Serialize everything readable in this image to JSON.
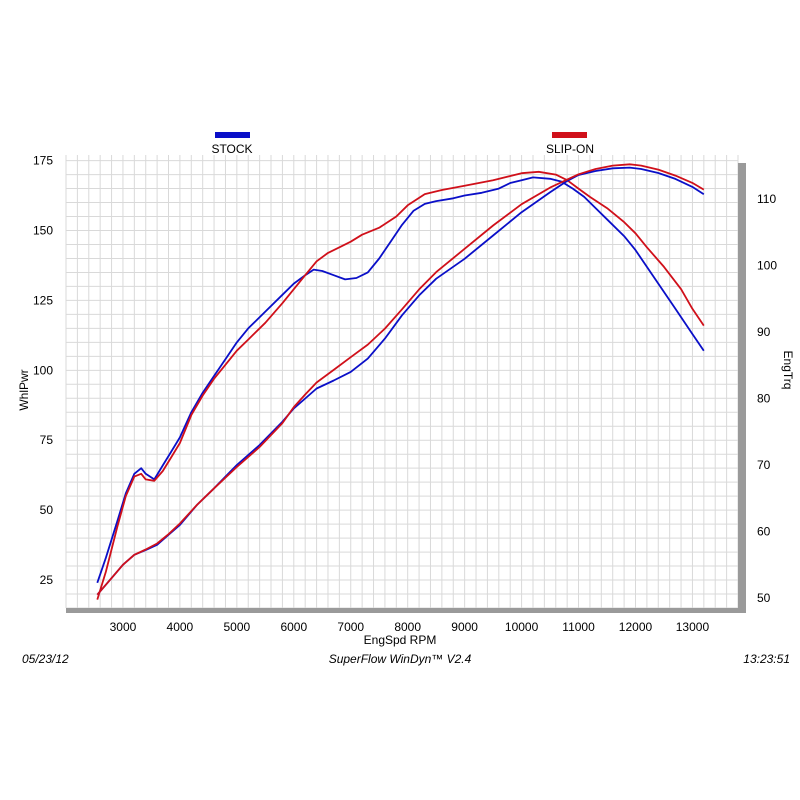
{
  "chart_data": {
    "type": "line",
    "xlabel": "EngSpd  RPM",
    "ylabel_left": "WhlPwr",
    "ylabel_right": "EngTrq",
    "xlim": [
      2000,
      13800
    ],
    "ylim_left": [
      15,
      177
    ],
    "ylim_right": [
      48.5,
      116.6
    ],
    "x_ticks": [
      3000,
      4000,
      5000,
      6000,
      7000,
      8000,
      9000,
      10000,
      11000,
      12000,
      13000
    ],
    "y_ticks_left": [
      25,
      50,
      75,
      100,
      125,
      150,
      175
    ],
    "y_ticks_right": [
      50,
      60,
      70,
      80,
      90,
      100,
      110
    ],
    "grid": true,
    "legend": [
      {
        "name": "STOCK",
        "color": "#0a0fc8"
      },
      {
        "name": "SLIP-ON",
        "color": "#d0101a"
      }
    ],
    "series": [
      {
        "name": "STOCK",
        "measure": "WhlPwr",
        "axis": "left",
        "color": "#0a0fc8",
        "x": [
          2550,
          2700,
          2900,
          3050,
          3200,
          3320,
          3400,
          3550,
          3700,
          3850,
          4000,
          4200,
          4400,
          4600,
          4800,
          5000,
          5200,
          5500,
          5800,
          6000,
          6200,
          6350,
          6500,
          6700,
          6900,
          7100,
          7300,
          7500,
          7700,
          7900,
          8100,
          8300,
          8500,
          8800,
          9000,
          9300,
          9600,
          9800,
          10000,
          10200,
          10500,
          10700,
          10900,
          11100,
          11300,
          11500,
          11800,
          12000,
          12200,
          12400,
          12700,
          13000,
          13200
        ],
        "y": [
          24,
          33,
          46,
          56,
          63,
          65,
          63,
          61,
          66,
          71,
          76,
          85,
          92,
          98,
          104,
          110,
          115,
          121,
          127,
          131,
          134,
          136,
          135.5,
          134,
          132.5,
          133,
          135,
          140,
          146,
          152,
          157,
          159.5,
          160.5,
          161.5,
          162.5,
          163.5,
          165,
          167,
          168,
          169,
          168.5,
          167.5,
          165,
          162,
          158,
          154,
          148,
          143,
          137,
          131,
          122,
          113,
          107
        ]
      },
      {
        "name": "SLIP-ON",
        "measure": "WhlPwr",
        "axis": "left",
        "color": "#d0101a",
        "x": [
          2550,
          2700,
          2900,
          3050,
          3200,
          3320,
          3400,
          3550,
          3700,
          3850,
          4000,
          4200,
          4400,
          4600,
          4800,
          5000,
          5200,
          5500,
          5800,
          6000,
          6200,
          6400,
          6600,
          6800,
          7000,
          7200,
          7500,
          7800,
          8000,
          8300,
          8600,
          9000,
          9500,
          10000,
          10300,
          10600,
          10800,
          11000,
          11200,
          11500,
          11800,
          12000,
          12200,
          12500,
          12800,
          13000,
          13200
        ],
        "y": [
          18,
          28,
          44,
          55,
          62,
          63,
          61,
          60.5,
          64,
          69,
          74,
          84,
          91,
          97,
          102,
          107,
          111,
          117,
          124,
          129,
          134,
          139,
          142,
          144,
          146,
          148.5,
          151,
          155,
          159,
          163,
          164.5,
          166,
          168,
          170.5,
          171,
          170,
          168,
          165,
          162,
          158,
          153,
          149,
          144,
          137,
          129,
          122,
          116
        ]
      },
      {
        "name": "STOCK",
        "measure": "EngTrq",
        "axis": "right",
        "color": "#0a0fc8",
        "x": [
          2550,
          2800,
          3000,
          3200,
          3400,
          3600,
          3800,
          4000,
          4300,
          4600,
          5000,
          5400,
          5800,
          6000,
          6200,
          6400,
          6700,
          7000,
          7300,
          7600,
          7900,
          8200,
          8500,
          9000,
          9500,
          10000,
          10500,
          10800,
          11000,
          11300,
          11600,
          11900,
          12100,
          12400,
          12700,
          13000,
          13200
        ],
        "y": [
          50.5,
          53,
          55,
          56.5,
          57.2,
          58,
          59.5,
          61,
          64,
          66.5,
          70,
          73,
          76.5,
          78.5,
          80,
          81.5,
          82.7,
          84,
          86,
          89,
          92.5,
          95.5,
          98,
          101,
          104.5,
          108,
          111,
          112.7,
          113.6,
          114.2,
          114.6,
          114.7,
          114.5,
          113.9,
          113,
          111.8,
          110.7
        ]
      },
      {
        "name": "SLIP-ON",
        "measure": "EngTrq",
        "axis": "right",
        "color": "#d0101a",
        "x": [
          2550,
          2800,
          3000,
          3200,
          3400,
          3600,
          3800,
          4000,
          4300,
          4600,
          5000,
          5400,
          5800,
          6000,
          6200,
          6400,
          6700,
          7000,
          7300,
          7600,
          7900,
          8200,
          8500,
          9000,
          9500,
          10000,
          10500,
          10800,
          11000,
          11300,
          11600,
          11900,
          12100,
          12400,
          12700,
          13000,
          13200
        ],
        "y": [
          50.5,
          53,
          55,
          56.5,
          57.3,
          58.2,
          59.6,
          61.2,
          64,
          66.5,
          69.7,
          72.7,
          76.3,
          78.7,
          80.6,
          82.4,
          84.3,
          86.2,
          88.1,
          90.5,
          93.4,
          96.4,
          99,
          102.5,
          106,
          109.2,
          111.7,
          112.9,
          113.7,
          114.5,
          115,
          115.2,
          115,
          114.4,
          113.5,
          112.4,
          111.4
        ]
      }
    ]
  },
  "footer": {
    "date": "05/23/12",
    "software": "SuperFlow WinDyn™  V2.4",
    "time": "13:23:51"
  }
}
